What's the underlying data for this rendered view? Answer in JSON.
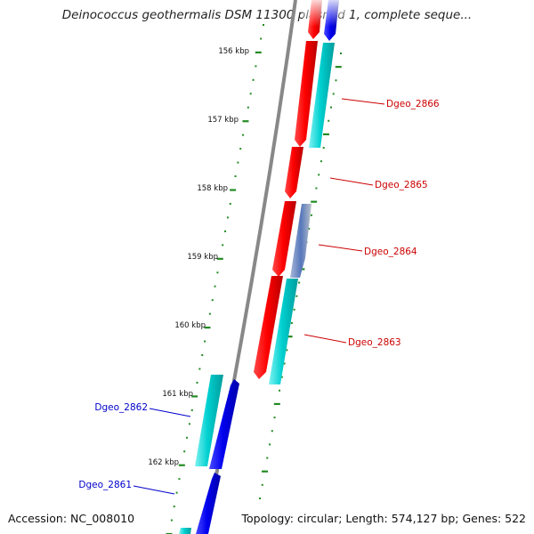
{
  "title": "Deinococcus geothermalis DSM 11300 plasmid 1, complete seque...",
  "accession": "Accession: NC_008010",
  "summary": "Topology: circular; Length: 574,127 bp; Genes: 522",
  "colors": {
    "forward_gene": "#ff0000",
    "forward_cds": "#00d0d0",
    "reverse_gene": "#0000ee",
    "reverse_cds": "#00c8c8",
    "selected_gene": "#5577bb",
    "backbone": "#888888",
    "tick": "#228b22",
    "forward_label": "#cc0000",
    "reverse_label": "#0000cc"
  },
  "kbp_labels": [
    "156 kbp",
    "157 kbp",
    "158 kbp",
    "159 kbp",
    "160 kbp",
    "161 kbp",
    "162 kbp"
  ],
  "gene_labels": [
    {
      "text": "Dgeo_2866",
      "strand": "forward"
    },
    {
      "text": "Dgeo_2865",
      "strand": "forward"
    },
    {
      "text": "Dgeo_2864",
      "strand": "forward"
    },
    {
      "text": "Dgeo_2863",
      "strand": "forward"
    },
    {
      "text": "Dgeo_2862",
      "strand": "reverse"
    },
    {
      "text": "Dgeo_2861",
      "strand": "reverse"
    }
  ]
}
